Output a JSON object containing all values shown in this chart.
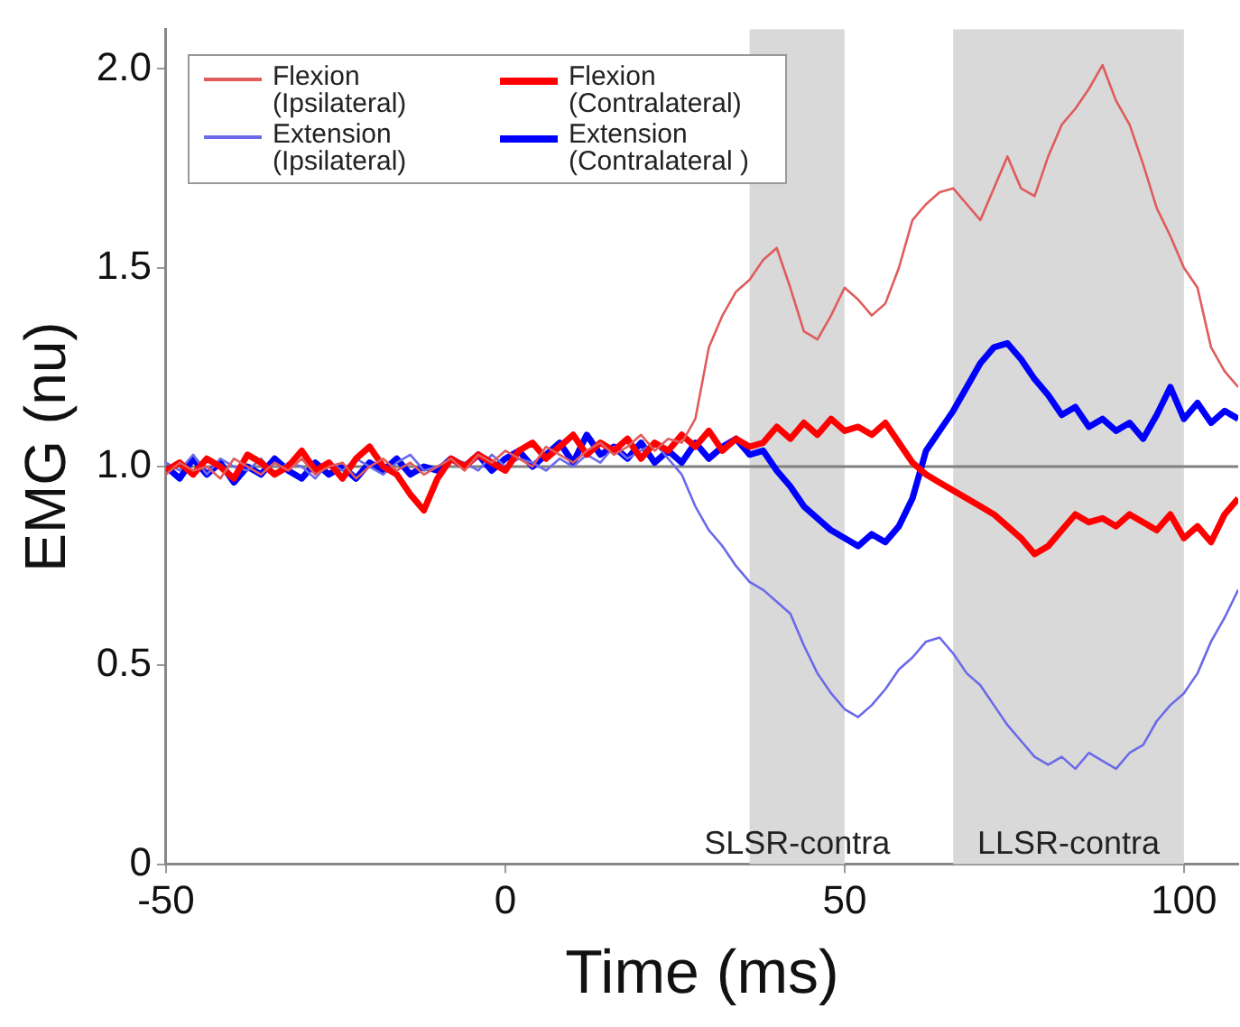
{
  "chart_data": {
    "type": "line",
    "xlabel": "Time (ms)",
    "ylabel": "EMG (nu)",
    "x": [
      -50,
      -48,
      -46,
      -44,
      -42,
      -40,
      -38,
      -36,
      -34,
      -32,
      -30,
      -28,
      -26,
      -24,
      -22,
      -20,
      -18,
      -16,
      -14,
      -12,
      -10,
      -8,
      -6,
      -4,
      -2,
      0,
      2,
      4,
      6,
      8,
      10,
      12,
      14,
      16,
      18,
      20,
      22,
      24,
      26,
      28,
      30,
      32,
      34,
      36,
      38,
      40,
      42,
      44,
      46,
      48,
      50,
      52,
      54,
      56,
      58,
      60,
      62,
      64,
      66,
      68,
      70,
      72,
      74,
      76,
      78,
      80,
      82,
      84,
      86,
      88,
      90,
      92,
      94,
      96,
      98,
      100,
      102,
      104,
      106,
      108
    ],
    "series": [
      {
        "name": "Flexion (Ipsilateral)",
        "color": "#e05c5c",
        "values": [
          0.98,
          1.01,
          0.99,
          1.0,
          0.97,
          1.02,
          1.0,
          0.98,
          1.01,
          0.99,
          1.02,
          0.98,
          1.0,
          1.01,
          0.97,
          1.0,
          1.02,
          0.99,
          1.01,
          0.98,
          1.0,
          1.02,
          0.99,
          1.03,
          1.01,
          1.04,
          1.02,
          1.0,
          1.05,
          1.03,
          1.01,
          1.04,
          1.06,
          1.03,
          1.05,
          1.08,
          1.04,
          1.07,
          1.06,
          1.12,
          1.3,
          1.38,
          1.44,
          1.47,
          1.52,
          1.55,
          1.45,
          1.34,
          1.32,
          1.38,
          1.45,
          1.42,
          1.38,
          1.41,
          1.5,
          1.62,
          1.66,
          1.69,
          1.7,
          1.66,
          1.62,
          1.7,
          1.78,
          1.7,
          1.68,
          1.78,
          1.86,
          1.9,
          1.95,
          2.01,
          1.92,
          1.86,
          1.76,
          1.65,
          1.58,
          1.5,
          1.45,
          1.3,
          1.24,
          1.2
        ]
      },
      {
        "name": "Flexion (Contralateral)",
        "color": "#ff0000",
        "values": [
          0.99,
          1.01,
          0.98,
          1.02,
          1.0,
          0.97,
          1.03,
          1.01,
          0.98,
          1.0,
          1.04,
          0.99,
          1.01,
          0.97,
          1.02,
          1.05,
          1.0,
          0.98,
          0.93,
          0.89,
          0.97,
          1.02,
          1.0,
          1.03,
          1.01,
          0.99,
          1.04,
          1.06,
          1.02,
          1.05,
          1.08,
          1.03,
          1.06,
          1.04,
          1.07,
          1.02,
          1.06,
          1.04,
          1.08,
          1.05,
          1.09,
          1.04,
          1.07,
          1.05,
          1.06,
          1.1,
          1.07,
          1.11,
          1.08,
          1.12,
          1.09,
          1.1,
          1.08,
          1.11,
          1.06,
          1.01,
          0.98,
          0.96,
          0.94,
          0.92,
          0.9,
          0.88,
          0.85,
          0.82,
          0.78,
          0.8,
          0.84,
          0.88,
          0.86,
          0.87,
          0.85,
          0.88,
          0.86,
          0.84,
          0.88,
          0.82,
          0.85,
          0.81,
          0.88,
          0.92
        ]
      },
      {
        "name": "Extension (Ipsilateral)",
        "color": "#6a6aea",
        "values": [
          1.01,
          0.99,
          1.03,
          0.98,
          1.02,
          1.0,
          0.99,
          1.02,
          0.98,
          1.01,
          1.0,
          0.97,
          1.01,
          0.99,
          1.02,
          1.0,
          0.98,
          1.01,
          1.03,
          0.99,
          1.0,
          1.02,
          1.01,
          0.99,
          1.03,
          1.0,
          1.02,
          1.01,
          0.99,
          1.02,
          1.0,
          1.03,
          1.01,
          1.05,
          1.02,
          1.04,
          1.06,
          1.02,
          0.98,
          0.9,
          0.84,
          0.8,
          0.75,
          0.71,
          0.69,
          0.66,
          0.63,
          0.55,
          0.48,
          0.43,
          0.39,
          0.37,
          0.4,
          0.44,
          0.49,
          0.52,
          0.56,
          0.57,
          0.53,
          0.48,
          0.45,
          0.4,
          0.35,
          0.31,
          0.27,
          0.25,
          0.27,
          0.24,
          0.28,
          0.26,
          0.24,
          0.28,
          0.3,
          0.36,
          0.4,
          0.43,
          0.48,
          0.56,
          0.62,
          0.69
        ]
      },
      {
        "name": "Extension (Contralateral )",
        "color": "#0000ff",
        "values": [
          1.0,
          0.97,
          1.02,
          0.98,
          1.01,
          0.96,
          1.0,
          0.98,
          1.02,
          0.99,
          0.97,
          1.01,
          0.98,
          1.0,
          0.97,
          1.01,
          0.99,
          1.02,
          0.98,
          1.0,
          0.99,
          1.02,
          1.0,
          1.03,
          0.99,
          1.02,
          1.04,
          1.0,
          1.03,
          1.06,
          1.01,
          1.08,
          1.03,
          1.05,
          1.02,
          1.06,
          1.01,
          1.04,
          1.01,
          1.06,
          1.02,
          1.05,
          1.07,
          1.03,
          1.04,
          0.99,
          0.95,
          0.9,
          0.87,
          0.84,
          0.82,
          0.8,
          0.83,
          0.81,
          0.85,
          0.92,
          1.04,
          1.09,
          1.14,
          1.2,
          1.26,
          1.3,
          1.31,
          1.27,
          1.22,
          1.18,
          1.13,
          1.15,
          1.1,
          1.12,
          1.09,
          1.11,
          1.07,
          1.13,
          1.2,
          1.12,
          1.16,
          1.11,
          1.14,
          1.12
        ]
      }
    ],
    "xlim": [
      -50,
      108
    ],
    "xticks": [
      -50,
      0,
      50,
      100
    ],
    "ylim": [
      0,
      2.1
    ],
    "yticks": [
      0,
      {
        "value": 0.5,
        "label": "0.5"
      },
      {
        "value": 1,
        "label": "1.0"
      },
      {
        "value": 1.5,
        "label": "1.5"
      },
      {
        "value": 2,
        "label": "2.0"
      }
    ],
    "ref_lines": [
      {
        "axis": "y",
        "value": 1,
        "color": "#808080"
      }
    ],
    "bands": [
      {
        "axis": "x",
        "from": 36,
        "to": 50,
        "label": "SLSR-contra",
        "color": "#d9d9d9"
      },
      {
        "axis": "x",
        "from": 66,
        "to": 100,
        "label": "LLSR-contra",
        "color": "#d9d9d9"
      }
    ],
    "grid": false,
    "legend": "top left",
    "marker": "none",
    "line_style": "solid"
  }
}
